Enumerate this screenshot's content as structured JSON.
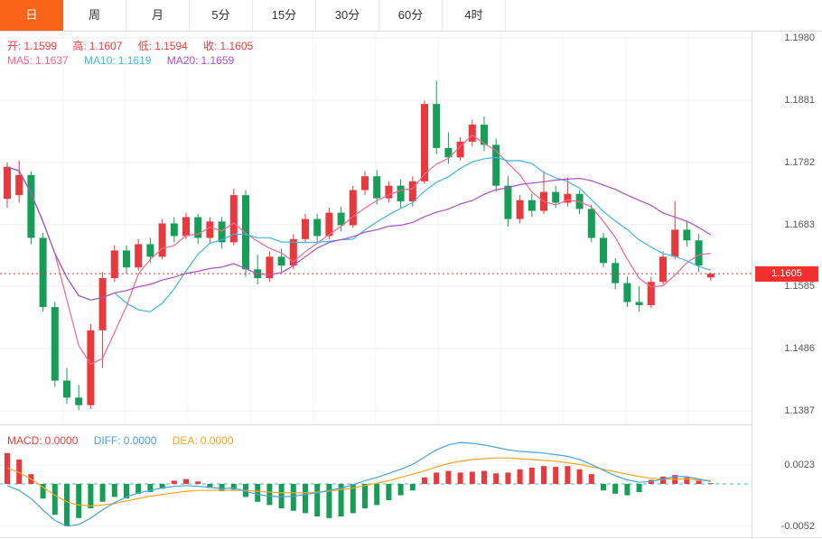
{
  "tabs": {
    "items": [
      {
        "label": "日",
        "active": true
      },
      {
        "label": "周",
        "active": false
      },
      {
        "label": "月",
        "active": false
      },
      {
        "label": "5分",
        "active": false
      },
      {
        "label": "15分",
        "active": false
      },
      {
        "label": "30分",
        "active": false
      },
      {
        "label": "60分",
        "active": false
      },
      {
        "label": "4时",
        "active": false
      }
    ]
  },
  "main_chart": {
    "ohlc": {
      "open_label": "开:",
      "open": "1.1599",
      "high_label": "高:",
      "high": "1.1607",
      "low_label": "低:",
      "low": "1.1594",
      "close_label": "收:",
      "close": "1.1605"
    },
    "ma": {
      "ma5_label": "MA5:",
      "ma5": "1.1637",
      "ma10_label": "MA10:",
      "ma10": "1.1619",
      "ma20_label": "MA20:",
      "ma20": "1.1659"
    },
    "y_axis_labels": [
      "1.1980",
      "1.1881",
      "1.1782",
      "1.1683",
      "1.1585",
      "1.1486",
      "1.1387"
    ],
    "last_price_tag": "1.1605"
  },
  "macd_panel": {
    "header": {
      "macd_label": "MACD:",
      "macd": "0.0000",
      "diff_label": "DIFF:",
      "diff": "0.0000",
      "dea_label": "DEA:",
      "dea": "0.0000"
    },
    "y_axis_labels": [
      "0.0023",
      "-0.0052"
    ]
  },
  "colors": {
    "up": "#e8393d",
    "down": "#169e58",
    "ma5": "#f2688c",
    "ma10": "#3db7e8",
    "ma20": "#ae4fc8",
    "diff": "#4aa3e0",
    "dea": "#f5a623",
    "ohlc_text": "#f23c3c",
    "macd_text": "#f23c3c",
    "tag_bg": "#f23030",
    "active_tab_bg": "#fa6419",
    "zero_line": "#38c0b5",
    "axis_text": "#555555"
  },
  "chart_data": [
    {
      "type": "candlestick",
      "title": "日K (daily candlestick)",
      "up_color_rule": "red = close >= open, green = close < open",
      "y_ticks": [
        1.198,
        1.1881,
        1.1782,
        1.1683,
        1.1585,
        1.1486,
        1.1387
      ],
      "last_price": 1.1605,
      "overlays": [
        {
          "name": "MA5",
          "period": 5,
          "value": 1.1637
        },
        {
          "name": "MA10",
          "period": 10,
          "value": 1.1619
        },
        {
          "name": "MA20",
          "period": 20,
          "value": 1.1659
        }
      ],
      "ohlc": [
        [
          1.1724,
          1.1782,
          1.171,
          1.1775
        ],
        [
          1.173,
          1.1785,
          1.1718,
          1.1762
        ],
        [
          1.1762,
          1.1768,
          1.1652,
          1.1662
        ],
        [
          1.1662,
          1.167,
          1.1545,
          1.1552
        ],
        [
          1.1552,
          1.156,
          1.1425,
          1.1435
        ],
        [
          1.1435,
          1.1455,
          1.1398,
          1.1408
        ],
        [
          1.1408,
          1.1428,
          1.1388,
          1.1396
        ],
        [
          1.1396,
          1.1525,
          1.139,
          1.1515
        ],
        [
          1.1515,
          1.1608,
          1.1455,
          1.1598
        ],
        [
          1.1598,
          1.165,
          1.1592,
          1.1642
        ],
        [
          1.1642,
          1.165,
          1.1605,
          1.1615
        ],
        [
          1.1615,
          1.166,
          1.161,
          1.1652
        ],
        [
          1.1652,
          1.1662,
          1.1622,
          1.1632
        ],
        [
          1.1632,
          1.1692,
          1.1628,
          1.1685
        ],
        [
          1.1685,
          1.1695,
          1.1655,
          1.1665
        ],
        [
          1.1665,
          1.1702,
          1.166,
          1.1695
        ],
        [
          1.1695,
          1.17,
          1.1652,
          1.1662
        ],
        [
          1.1662,
          1.1695,
          1.1654,
          1.1688
        ],
        [
          1.1688,
          1.1695,
          1.1645,
          1.1655
        ],
        [
          1.1655,
          1.174,
          1.165,
          1.173
        ],
        [
          1.173,
          1.1738,
          1.16,
          1.1612
        ],
        [
          1.1612,
          1.1635,
          1.1588,
          1.1598
        ],
        [
          1.1598,
          1.164,
          1.1592,
          1.1632
        ],
        [
          1.1632,
          1.1645,
          1.1608,
          1.1618
        ],
        [
          1.1618,
          1.1668,
          1.1612,
          1.166
        ],
        [
          1.166,
          1.17,
          1.1655,
          1.1692
        ],
        [
          1.1692,
          1.17,
          1.1655,
          1.1665
        ],
        [
          1.1665,
          1.171,
          1.166,
          1.1702
        ],
        [
          1.1702,
          1.1712,
          1.1672,
          1.1682
        ],
        [
          1.1682,
          1.1745,
          1.1678,
          1.1738
        ],
        [
          1.1738,
          1.1768,
          1.173,
          1.176
        ],
        [
          1.176,
          1.177,
          1.1715,
          1.1725
        ],
        [
          1.1725,
          1.1752,
          1.1718,
          1.1745
        ],
        [
          1.1745,
          1.1755,
          1.171,
          1.172
        ],
        [
          1.172,
          1.176,
          1.1712,
          1.1752
        ],
        [
          1.1752,
          1.188,
          1.1748,
          1.1875
        ],
        [
          1.1875,
          1.1912,
          1.1795,
          1.1805
        ],
        [
          1.1805,
          1.183,
          1.178,
          1.179
        ],
        [
          1.179,
          1.1822,
          1.1785,
          1.1815
        ],
        [
          1.1815,
          1.185,
          1.1808,
          1.1842
        ],
        [
          1.1842,
          1.1855,
          1.18,
          1.181
        ],
        [
          1.181,
          1.182,
          1.1735,
          1.1745
        ],
        [
          1.1745,
          1.176,
          1.168,
          1.1692
        ],
        [
          1.1692,
          1.173,
          1.1685,
          1.1722
        ],
        [
          1.1722,
          1.1732,
          1.1695,
          1.1705
        ],
        [
          1.1705,
          1.1768,
          1.17,
          1.1735
        ],
        [
          1.1735,
          1.1745,
          1.171,
          1.1718
        ],
        [
          1.1718,
          1.1758,
          1.1712,
          1.1732
        ],
        [
          1.1732,
          1.1738,
          1.17,
          1.1708
        ],
        [
          1.1708,
          1.1715,
          1.1655,
          1.1662
        ],
        [
          1.1662,
          1.167,
          1.1615,
          1.1622
        ],
        [
          1.1622,
          1.163,
          1.158,
          1.159
        ],
        [
          1.159,
          1.16,
          1.1552,
          1.156
        ],
        [
          1.156,
          1.1585,
          1.1545,
          1.1555
        ],
        [
          1.1555,
          1.16,
          1.155,
          1.1592
        ],
        [
          1.1592,
          1.164,
          1.1588,
          1.1632
        ],
        [
          1.1632,
          1.172,
          1.1628,
          1.1675
        ],
        [
          1.1675,
          1.1688,
          1.1648,
          1.1658
        ],
        [
          1.1658,
          1.1668,
          1.1608,
          1.1618
        ],
        [
          1.1599,
          1.1607,
          1.1594,
          1.1605
        ]
      ]
    },
    {
      "type": "bar",
      "name": "MACD",
      "y_ticks": [
        0.0023,
        -0.0052
      ],
      "readout": {
        "MACD": 0.0,
        "DIFF": 0.0,
        "DEA": 0.0
      },
      "histogram": [
        0.0038,
        0.003,
        0.0012,
        -0.0018,
        -0.0038,
        -0.0052,
        -0.0042,
        -0.003,
        -0.0022,
        -0.0016,
        -0.0018,
        -0.0012,
        -0.001,
        -0.0006,
        0.0004,
        0.0006,
        0.0003,
        -0.0005,
        -0.0009,
        -0.0007,
        -0.0016,
        -0.0022,
        -0.0026,
        -0.003,
        -0.0033,
        -0.0036,
        -0.004,
        -0.0042,
        -0.004,
        -0.0036,
        -0.003,
        -0.0026,
        -0.002,
        -0.0014,
        -0.0008,
        0.0008,
        0.0014,
        0.0016,
        0.0014,
        0.0015,
        0.0016,
        0.0013,
        0.0014,
        0.0018,
        0.002,
        0.0022,
        0.0021,
        0.0022,
        0.0018,
        0.0012,
        -0.0008,
        -0.0012,
        -0.0014,
        -0.001,
        0.0005,
        0.0009,
        0.0011,
        0.0008,
        0.0004,
        0.0001
      ],
      "diff": [
        -0.0002,
        -0.0008,
        -0.0018,
        -0.0032,
        -0.0045,
        -0.0052,
        -0.005,
        -0.0042,
        -0.0032,
        -0.0023,
        -0.0016,
        -0.0011,
        -0.0008,
        -0.0005,
        -0.0003,
        -0.0002,
        -0.0003,
        -0.0004,
        -0.0006,
        -0.0005,
        -0.0009,
        -0.0013,
        -0.0015,
        -0.0016,
        -0.0015,
        -0.0013,
        -0.0011,
        -0.0008,
        -0.0005,
        -0.0001,
        0.0004,
        0.0008,
        0.0013,
        0.0018,
        0.0024,
        0.0033,
        0.0042,
        0.0048,
        0.0051,
        0.005,
        0.0048,
        0.0045,
        0.0042,
        0.004,
        0.0039,
        0.0038,
        0.0036,
        0.0034,
        0.003,
        0.0024,
        0.0017,
        0.001,
        0.0005,
        0.0002,
        0.0003,
        0.0006,
        0.0009,
        0.0009,
        0.0006,
        0.0003
      ],
      "dea": [
        0.002,
        0.0014,
        0.0006,
        -0.0004,
        -0.0014,
        -0.0022,
        -0.0026,
        -0.0027,
        -0.0026,
        -0.0024,
        -0.0021,
        -0.0018,
        -0.0015,
        -0.0013,
        -0.0011,
        -0.0009,
        -0.0008,
        -0.0008,
        -0.0008,
        -0.0008,
        -0.0008,
        -0.0009,
        -0.001,
        -0.0011,
        -0.0011,
        -0.0011,
        -0.001,
        -0.0009,
        -0.0007,
        -0.0005,
        -0.0002,
        0.0001,
        0.0004,
        0.0008,
        0.0012,
        0.0016,
        0.0021,
        0.0025,
        0.0028,
        0.003,
        0.0031,
        0.0032,
        0.0032,
        0.0031,
        0.003,
        0.0029,
        0.0028,
        0.0026,
        0.0024,
        0.0021,
        0.0018,
        0.0015,
        0.0012,
        0.0009,
        0.0007,
        0.0006,
        0.0006,
        0.0006,
        0.0005,
        0.0004
      ]
    }
  ]
}
